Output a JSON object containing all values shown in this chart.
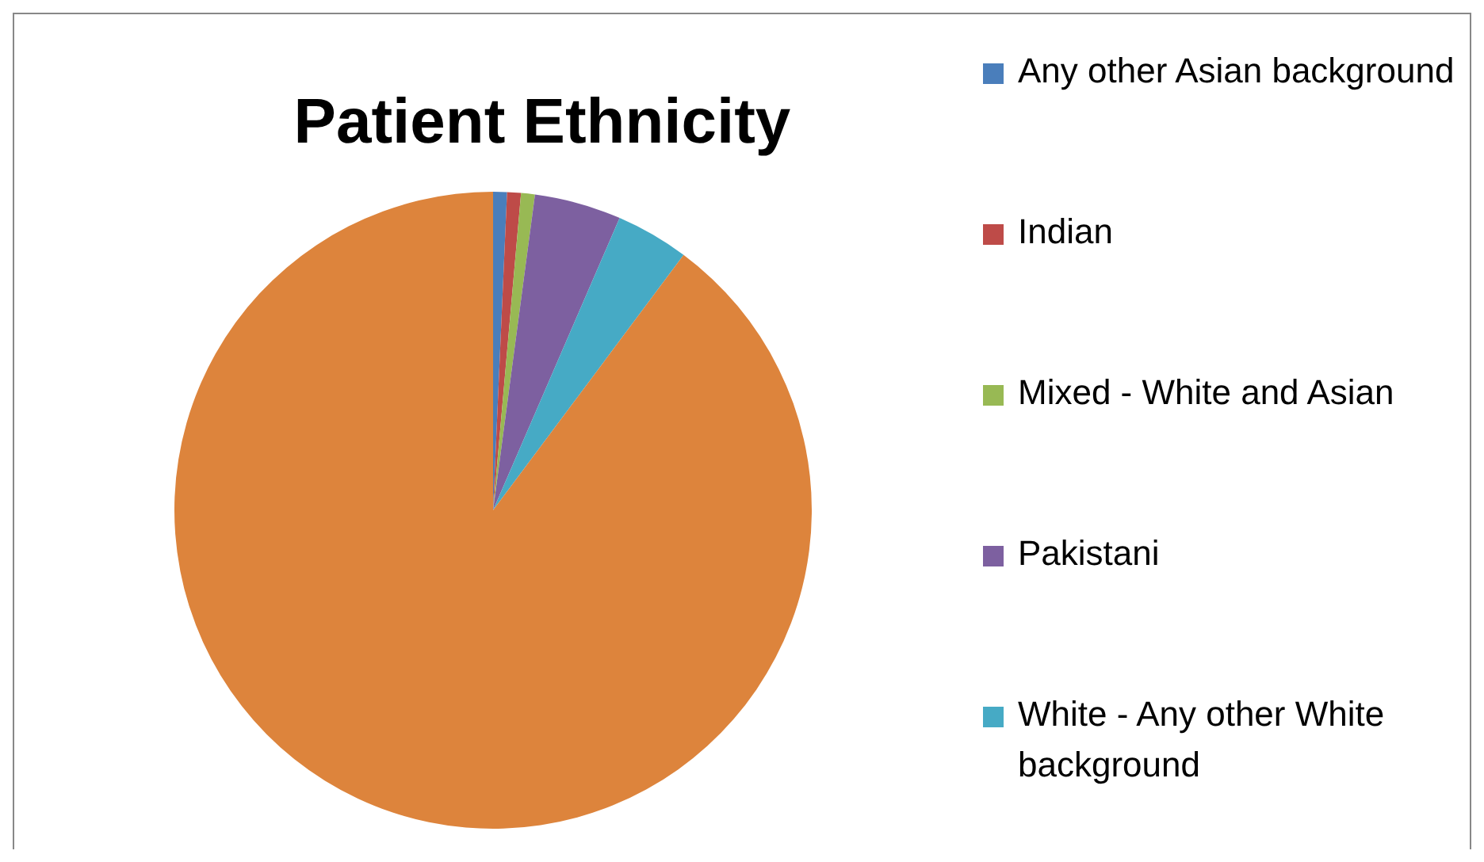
{
  "chart_data": {
    "type": "pie",
    "title": "Patient Ethnicity",
    "categories": [
      "Any other Asian background",
      "Indian",
      "Mixed - White and Asian",
      "Pakistani",
      "White - Any other White background",
      null
    ],
    "values": [
      0.7,
      0.7,
      0.7,
      4.4,
      3.7,
      89.8
    ],
    "colors": [
      "#4a7ebb",
      "#be4b48",
      "#98b954",
      "#7d60a0",
      "#46aac5",
      "#dd843c"
    ],
    "legend": "right"
  }
}
